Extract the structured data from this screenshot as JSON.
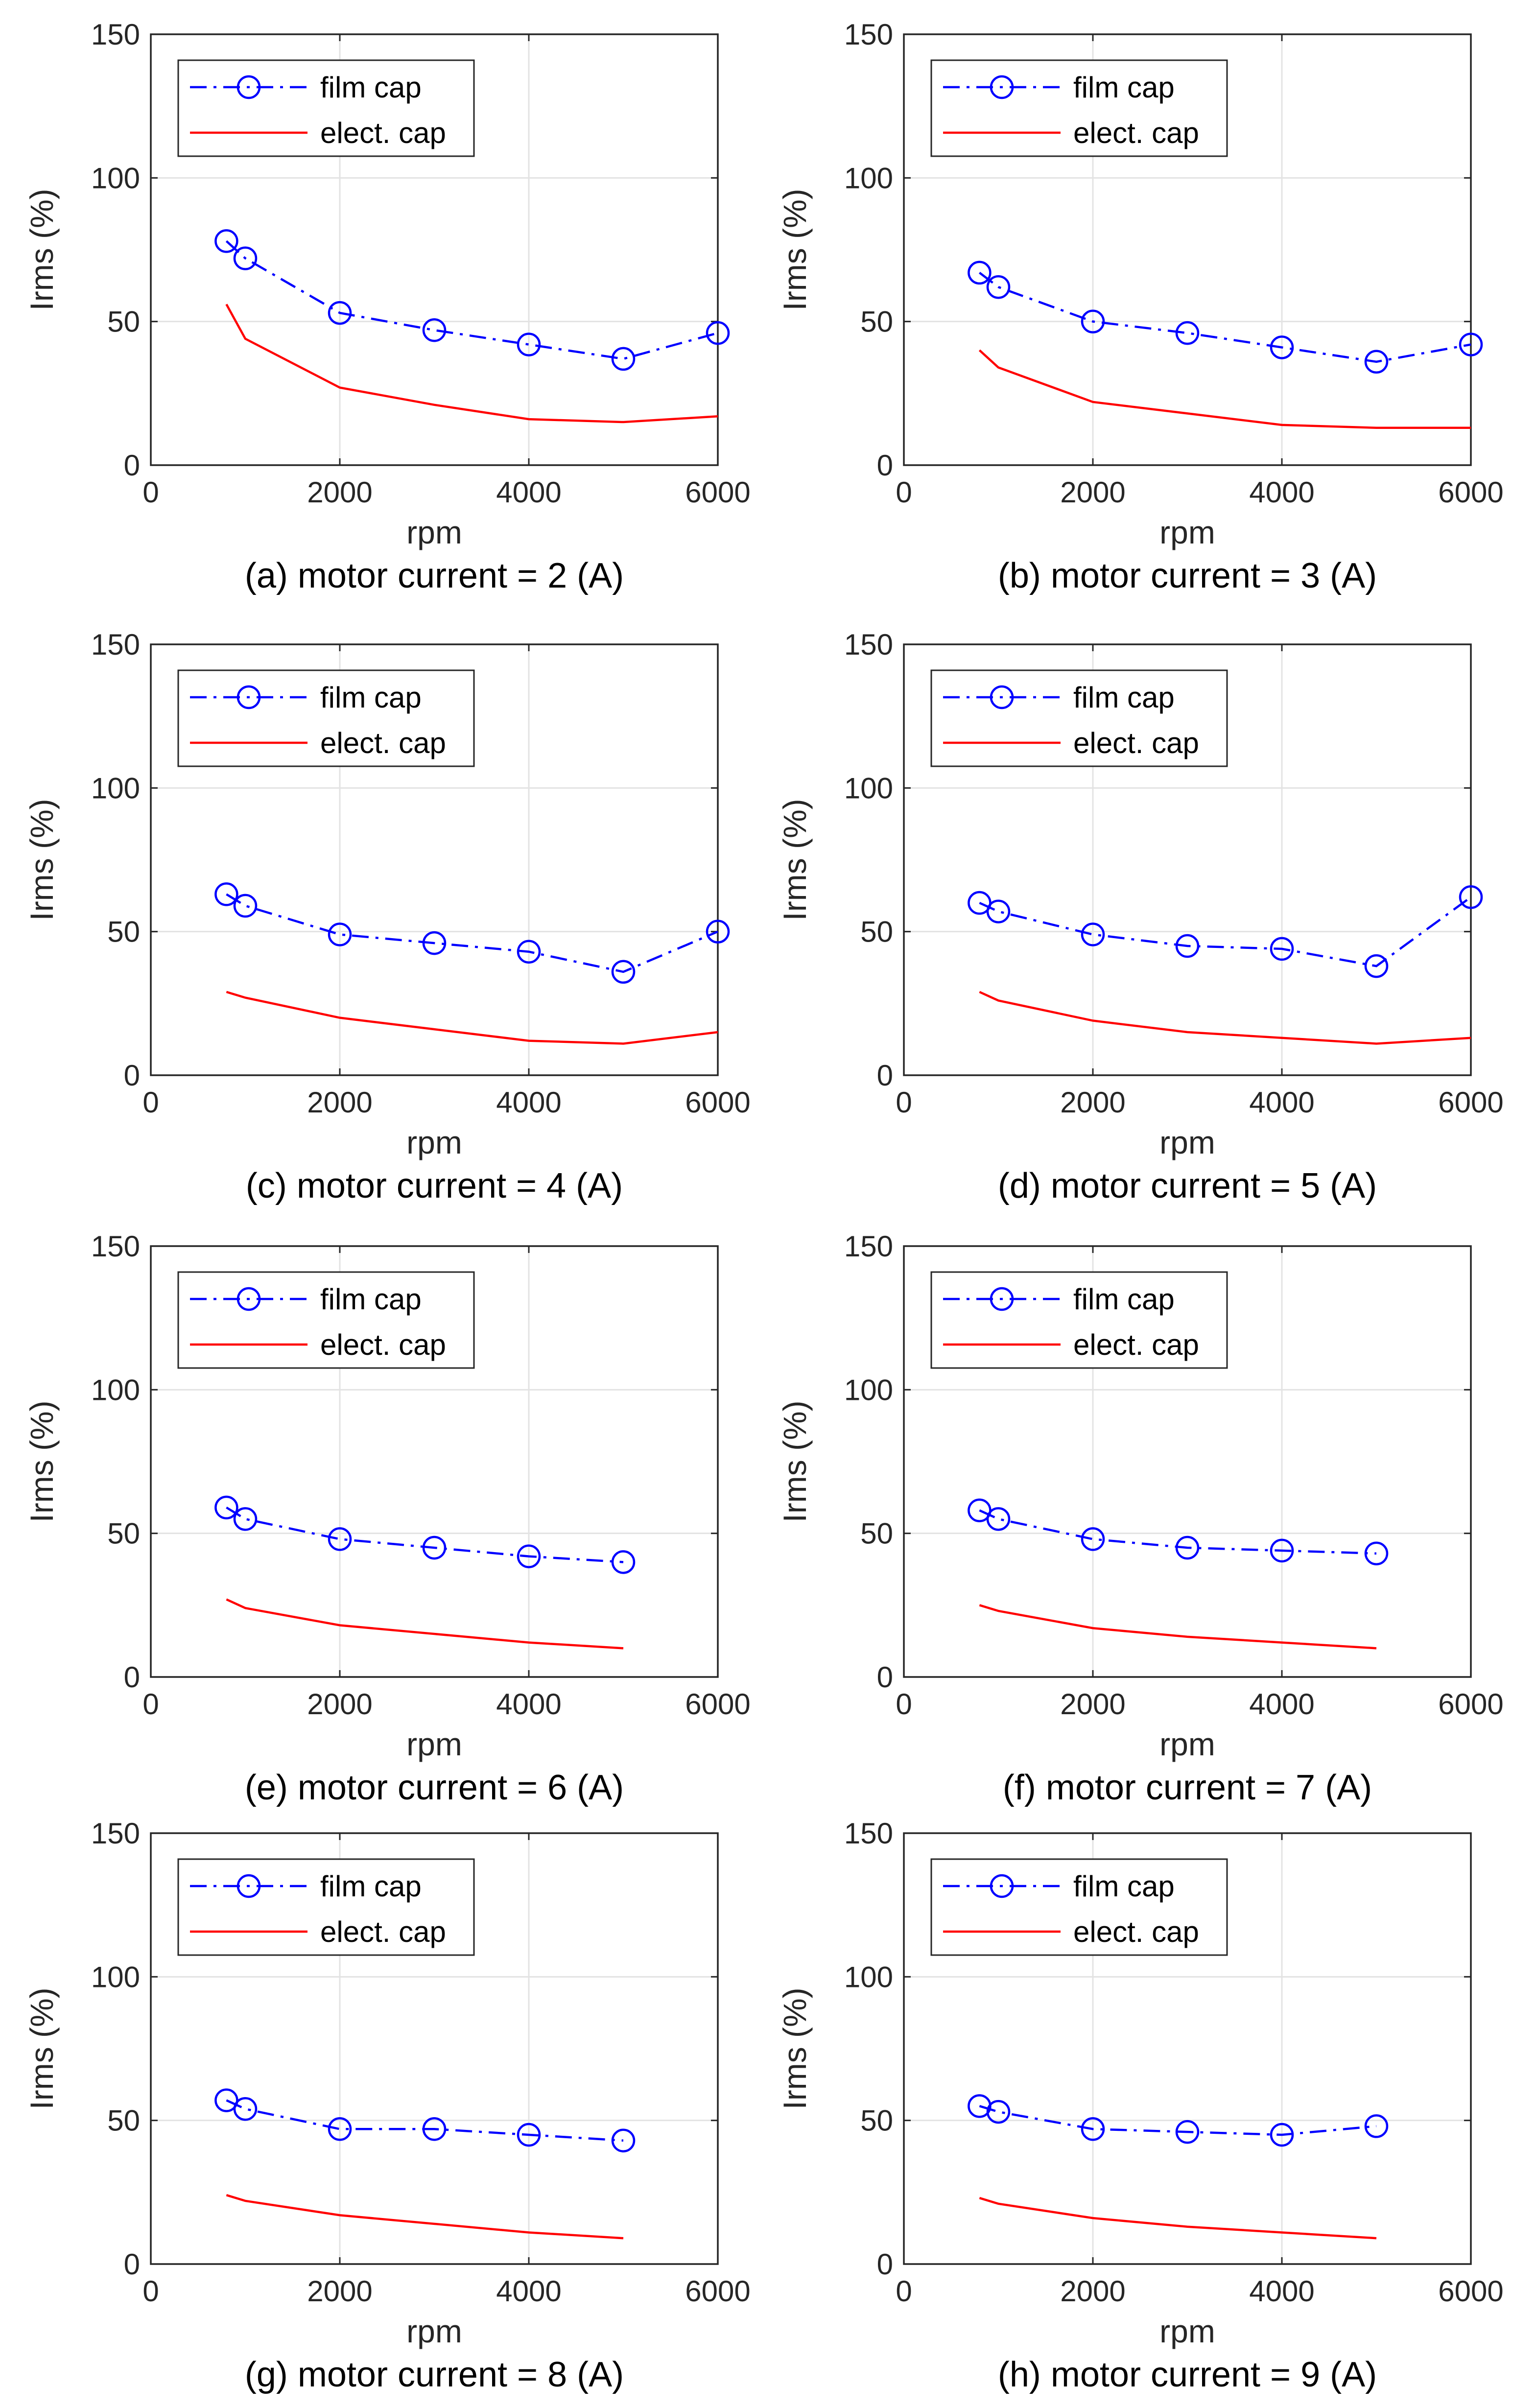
{
  "colors": {
    "film": "#0000ff",
    "elect": "#ff0000",
    "grid": "#e3e3e3",
    "axis": "#262626"
  },
  "chart_data": [
    {
      "type": "line",
      "caption": "(a) motor current = 2 (A)",
      "xlabel": "rpm",
      "ylabel": "Irms (%)",
      "xlim": [
        0,
        6000
      ],
      "ylim": [
        0,
        150
      ],
      "xticks": [
        0,
        2000,
        4000,
        6000
      ],
      "yticks": [
        0,
        50,
        100,
        150
      ],
      "grid": true,
      "legend_position": "top-left",
      "series": [
        {
          "name": "film cap",
          "style": "dash-dot-circle",
          "x": [
            800,
            1000,
            2000,
            3000,
            4000,
            5000,
            6000
          ],
          "y": [
            78,
            72,
            53,
            47,
            42,
            37,
            46
          ]
        },
        {
          "name": "elect. cap",
          "style": "solid",
          "x": [
            800,
            1000,
            2000,
            3000,
            4000,
            5000,
            6000
          ],
          "y": [
            56,
            44,
            27,
            21,
            16,
            15,
            17
          ]
        }
      ]
    },
    {
      "type": "line",
      "caption": "(b) motor current = 3 (A)",
      "xlabel": "rpm",
      "ylabel": "Irms (%)",
      "xlim": [
        0,
        6000
      ],
      "ylim": [
        0,
        150
      ],
      "xticks": [
        0,
        2000,
        4000,
        6000
      ],
      "yticks": [
        0,
        50,
        100,
        150
      ],
      "grid": true,
      "legend_position": "top-left",
      "series": [
        {
          "name": "film cap",
          "style": "dash-dot-circle",
          "x": [
            800,
            1000,
            2000,
            3000,
            4000,
            5000,
            6000
          ],
          "y": [
            67,
            62,
            50,
            46,
            41,
            36,
            42
          ]
        },
        {
          "name": "elect. cap",
          "style": "solid",
          "x": [
            800,
            1000,
            2000,
            3000,
            4000,
            5000,
            6000
          ],
          "y": [
            40,
            34,
            22,
            18,
            14,
            13,
            13
          ]
        }
      ]
    },
    {
      "type": "line",
      "caption": "(c) motor current = 4 (A)",
      "xlabel": "rpm",
      "ylabel": "Irms (%)",
      "xlim": [
        0,
        6000
      ],
      "ylim": [
        0,
        150
      ],
      "xticks": [
        0,
        2000,
        4000,
        6000
      ],
      "yticks": [
        0,
        50,
        100,
        150
      ],
      "grid": true,
      "legend_position": "top-left",
      "series": [
        {
          "name": "film cap",
          "style": "dash-dot-circle",
          "x": [
            800,
            1000,
            2000,
            3000,
            4000,
            5000,
            6000
          ],
          "y": [
            63,
            59,
            49,
            46,
            43,
            36,
            50
          ]
        },
        {
          "name": "elect. cap",
          "style": "solid",
          "x": [
            800,
            1000,
            2000,
            3000,
            4000,
            5000,
            6000
          ],
          "y": [
            29,
            27,
            20,
            16,
            12,
            11,
            15
          ]
        }
      ]
    },
    {
      "type": "line",
      "caption": "(d) motor current = 5 (A)",
      "xlabel": "rpm",
      "ylabel": "Irms (%)",
      "xlim": [
        0,
        6000
      ],
      "ylim": [
        0,
        150
      ],
      "xticks": [
        0,
        2000,
        4000,
        6000
      ],
      "yticks": [
        0,
        50,
        100,
        150
      ],
      "grid": true,
      "legend_position": "top-left",
      "series": [
        {
          "name": "film cap",
          "style": "dash-dot-circle",
          "x": [
            800,
            1000,
            2000,
            3000,
            4000,
            5000,
            6000
          ],
          "y": [
            60,
            57,
            49,
            45,
            44,
            38,
            62
          ]
        },
        {
          "name": "elect. cap",
          "style": "solid",
          "x": [
            800,
            1000,
            2000,
            3000,
            4000,
            5000,
            6000
          ],
          "y": [
            29,
            26,
            19,
            15,
            13,
            11,
            13
          ]
        }
      ]
    },
    {
      "type": "line",
      "caption": "(e) motor current = 6 (A)",
      "xlabel": "rpm",
      "ylabel": "Irms (%)",
      "xlim": [
        0,
        6000
      ],
      "ylim": [
        0,
        150
      ],
      "xticks": [
        0,
        2000,
        4000,
        6000
      ],
      "yticks": [
        0,
        50,
        100,
        150
      ],
      "grid": true,
      "legend_position": "top-left",
      "series": [
        {
          "name": "film cap",
          "style": "dash-dot-circle",
          "x": [
            800,
            1000,
            2000,
            3000,
            4000,
            5000
          ],
          "y": [
            59,
            55,
            48,
            45,
            42,
            40
          ]
        },
        {
          "name": "elect. cap",
          "style": "solid",
          "x": [
            800,
            1000,
            2000,
            3000,
            4000,
            5000
          ],
          "y": [
            27,
            24,
            18,
            15,
            12,
            10
          ]
        }
      ]
    },
    {
      "type": "line",
      "caption": "(f) motor current = 7 (A)",
      "xlabel": "rpm",
      "ylabel": "Irms (%)",
      "xlim": [
        0,
        6000
      ],
      "ylim": [
        0,
        150
      ],
      "xticks": [
        0,
        2000,
        4000,
        6000
      ],
      "yticks": [
        0,
        50,
        100,
        150
      ],
      "grid": true,
      "legend_position": "top-left",
      "series": [
        {
          "name": "film cap",
          "style": "dash-dot-circle",
          "x": [
            800,
            1000,
            2000,
            3000,
            4000,
            5000
          ],
          "y": [
            58,
            55,
            48,
            45,
            44,
            43
          ]
        },
        {
          "name": "elect. cap",
          "style": "solid",
          "x": [
            800,
            1000,
            2000,
            3000,
            4000,
            5000
          ],
          "y": [
            25,
            23,
            17,
            14,
            12,
            10
          ]
        }
      ]
    },
    {
      "type": "line",
      "caption": "(g) motor current = 8 (A)",
      "xlabel": "rpm",
      "ylabel": "Irms (%)",
      "xlim": [
        0,
        6000
      ],
      "ylim": [
        0,
        150
      ],
      "xticks": [
        0,
        2000,
        4000,
        6000
      ],
      "yticks": [
        0,
        50,
        100,
        150
      ],
      "grid": true,
      "legend_position": "top-left",
      "series": [
        {
          "name": "film cap",
          "style": "dash-dot-circle",
          "x": [
            800,
            1000,
            2000,
            3000,
            4000,
            5000
          ],
          "y": [
            57,
            54,
            47,
            47,
            45,
            43
          ]
        },
        {
          "name": "elect. cap",
          "style": "solid",
          "x": [
            800,
            1000,
            2000,
            3000,
            4000,
            5000
          ],
          "y": [
            24,
            22,
            17,
            14,
            11,
            9
          ]
        }
      ]
    },
    {
      "type": "line",
      "caption": "(h) motor current = 9 (A)",
      "xlabel": "rpm",
      "ylabel": "Irms (%)",
      "xlim": [
        0,
        6000
      ],
      "ylim": [
        0,
        150
      ],
      "xticks": [
        0,
        2000,
        4000,
        6000
      ],
      "yticks": [
        0,
        50,
        100,
        150
      ],
      "grid": true,
      "legend_position": "top-left",
      "series": [
        {
          "name": "film cap",
          "style": "dash-dot-circle",
          "x": [
            800,
            1000,
            2000,
            3000,
            4000,
            5000
          ],
          "y": [
            55,
            53,
            47,
            46,
            45,
            48
          ]
        },
        {
          "name": "elect. cap",
          "style": "solid",
          "x": [
            800,
            1000,
            2000,
            3000,
            4000,
            5000
          ],
          "y": [
            23,
            21,
            16,
            13,
            11,
            9
          ]
        }
      ]
    }
  ]
}
